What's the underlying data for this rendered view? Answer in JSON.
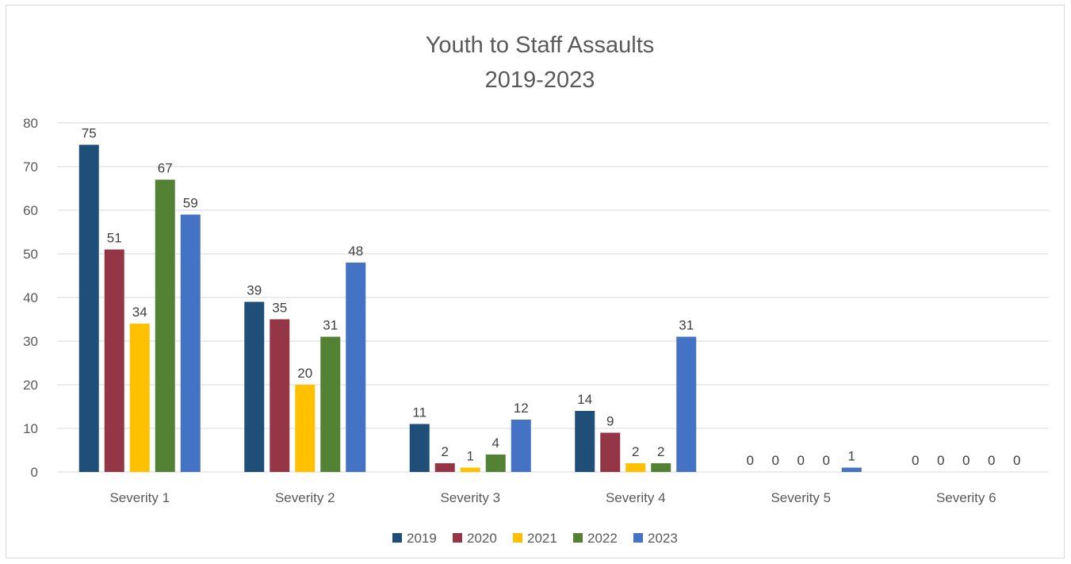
{
  "chart_data": {
    "type": "bar",
    "title": "Youth to Staff Assaults",
    "subtitle": "2019-2023",
    "xlabel": "",
    "ylabel": "",
    "ylim": [
      0,
      80
    ],
    "yticks": [
      0,
      10,
      20,
      30,
      40,
      50,
      60,
      70,
      80
    ],
    "grid": true,
    "legend_position": "bottom",
    "categories": [
      "Severity 1",
      "Severity 2",
      "Severity 3",
      "Severity 4",
      "Severity 5",
      "Severity 6"
    ],
    "series": [
      {
        "name": "2019",
        "color": "#1f4e79",
        "values": [
          75,
          39,
          11,
          14,
          0,
          0
        ]
      },
      {
        "name": "2020",
        "color": "#943646",
        "values": [
          51,
          35,
          2,
          9,
          0,
          0
        ]
      },
      {
        "name": "2021",
        "color": "#ffc000",
        "values": [
          34,
          20,
          1,
          2,
          0,
          0
        ]
      },
      {
        "name": "2022",
        "color": "#548235",
        "values": [
          67,
          31,
          4,
          2,
          0,
          0
        ]
      },
      {
        "name": "2023",
        "color": "#4472c4",
        "values": [
          59,
          48,
          12,
          31,
          1,
          0
        ]
      }
    ]
  }
}
